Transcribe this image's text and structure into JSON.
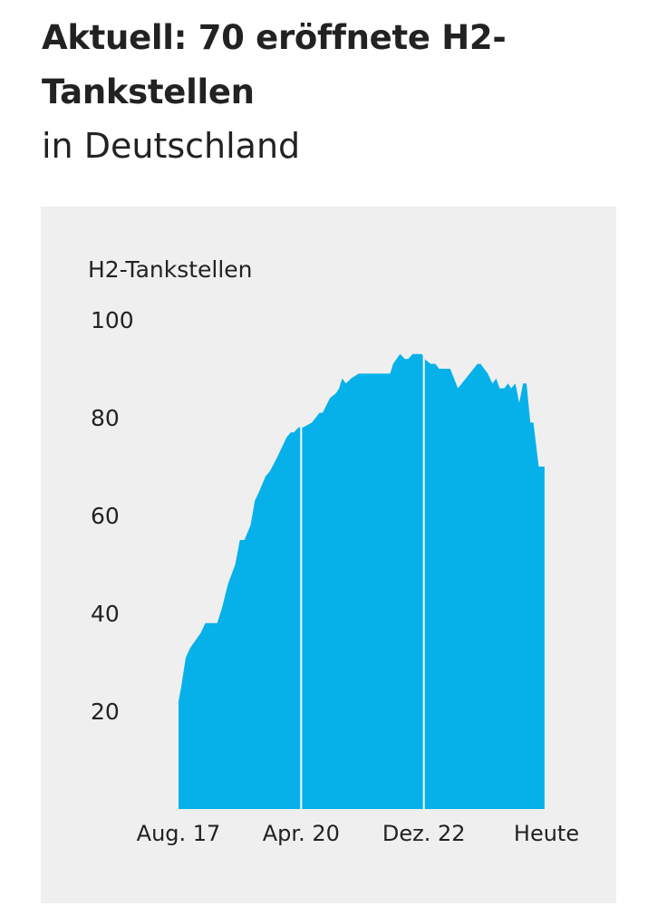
{
  "title": "Aktuell: 70 eröffnete H2-Tankstellen",
  "subtitle": "in Deutschland",
  "colors": {
    "area": "#06b1ea",
    "panel": "#efefef",
    "divider": "#ffffff"
  },
  "chart_data": {
    "type": "area",
    "title": "Aktuell: 70 eröffnete H2-Tankstellen",
    "subtitle": "in Deutschland",
    "ylabel": "H2-Tankstellen",
    "xlabel": "",
    "x_unit": "months since Aug. 2017",
    "xlim": [
      0,
      96
    ],
    "ylim": [
      0,
      100
    ],
    "yticks": [
      20,
      40,
      60,
      80,
      100
    ],
    "xticks": [
      {
        "value": 0,
        "label": "Aug. 17"
      },
      {
        "value": 32,
        "label": "Apr. 20"
      },
      {
        "value": 64,
        "label": "Dez. 22"
      },
      {
        "value": 96,
        "label": "Heute"
      }
    ],
    "markers": [
      32,
      64
    ],
    "grid": false,
    "x": [
      0,
      0.7,
      1.9,
      3.1,
      5.8,
      7.0,
      10.1,
      11.3,
      12.9,
      14.8,
      16.0,
      17.2,
      18.8,
      19.9,
      21.1,
      22.7,
      23.8,
      25.8,
      28.2,
      29.3,
      30.1,
      31.3,
      32.5,
      34.8,
      36.8,
      37.6,
      39.5,
      41.1,
      41.9,
      42.7,
      43.7,
      45.0,
      47.0,
      55.2,
      56.0,
      57.8,
      59.1,
      59.9,
      61.1,
      63.5,
      64.2,
      65.8,
      67.0,
      68.0,
      70.9,
      72.9,
      78.0,
      78.8,
      80.7,
      81.9,
      82.9,
      83.8,
      85.0,
      86.0,
      86.8,
      87.9,
      88.9,
      89.9,
      90.8,
      91.8,
      92.6,
      94.0,
      95.5
    ],
    "values": [
      22,
      25,
      31,
      33,
      36,
      38,
      38,
      41,
      46,
      50,
      55,
      55,
      58,
      63,
      65,
      68,
      69,
      72,
      76,
      77,
      77,
      78,
      78,
      79,
      81,
      81,
      84,
      85,
      86,
      88,
      87,
      88,
      89,
      89,
      91,
      93,
      92,
      92,
      93,
      93,
      92,
      91,
      91,
      90,
      90,
      86,
      91,
      91,
      89,
      87,
      88,
      86,
      86,
      87,
      86,
      87,
      83,
      87,
      87,
      79,
      79,
      70,
      70
    ]
  }
}
